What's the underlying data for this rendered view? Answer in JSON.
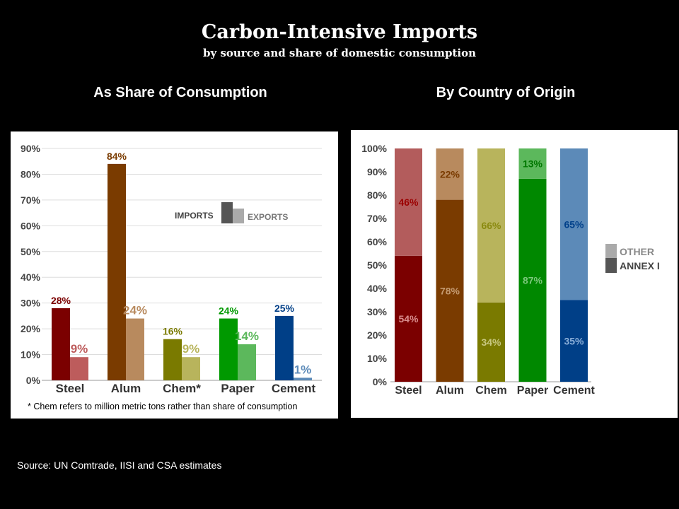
{
  "title": "Carbon-Intensive Imports",
  "subtitle": "by source and share of domestic consumption",
  "source": "Source: UN Comtrade, IISI and CSA estimates",
  "chart_data": [
    {
      "type": "bar",
      "title": "As Share of Consumption",
      "categories": [
        "Steel",
        "Alum",
        "Chem*",
        "Paper",
        "Cement"
      ],
      "series": [
        {
          "name": "IMPORTS",
          "values": [
            28,
            84,
            16,
            24,
            25
          ],
          "labels": [
            "28%",
            "84%",
            "16%",
            "24%",
            "25%"
          ]
        },
        {
          "name": "EXPORTS",
          "values": [
            9,
            24,
            9,
            14,
            1
          ],
          "labels": [
            "9%",
            "24%",
            "9%",
            "14%",
            "1%"
          ]
        }
      ],
      "y_ticks": [
        "0%",
        "10%",
        "20%",
        "30%",
        "40%",
        "50%",
        "60%",
        "70%",
        "80%",
        "90%"
      ],
      "ylim": [
        0,
        90
      ],
      "grid": true,
      "legend": "middle-right",
      "note": "* Chem refers to million metric tons rather than share of consumption",
      "colors": {
        "imports": [
          "#7b0000",
          "#7a3b00",
          "#7a7a00",
          "#009900",
          "#003f87"
        ],
        "exports": [
          "#bd5c5c",
          "#b88a5e",
          "#b8b45c",
          "#5cb85c",
          "#5c8ab8"
        ],
        "legend_imports": "#555555",
        "legend_exports": "#aaaaaa"
      }
    },
    {
      "type": "bar",
      "stacked": true,
      "title": "By Country of Origin",
      "categories": [
        "Steel",
        "Alum",
        "Chem",
        "Paper",
        "Cement"
      ],
      "series": [
        {
          "name": "ANNEX I",
          "values": [
            54,
            78,
            34,
            87,
            35
          ],
          "labels": [
            "54%",
            "78%",
            "34%",
            "87%",
            "35%"
          ]
        },
        {
          "name": "OTHER",
          "values": [
            46,
            22,
            66,
            13,
            65
          ],
          "labels": [
            "46%",
            "22%",
            "66%",
            "13%",
            "65%"
          ]
        }
      ],
      "y_ticks": [
        "0%",
        "10%",
        "20%",
        "30%",
        "40%",
        "50%",
        "60%",
        "70%",
        "80%",
        "90%",
        "100%"
      ],
      "ylim": [
        0,
        100
      ],
      "grid": false,
      "legend": "right",
      "colors": {
        "annex": [
          "#7b0000",
          "#7a3b00",
          "#7a7a00",
          "#008800",
          "#003f87"
        ],
        "other": [
          "#b35c5c",
          "#b88a5e",
          "#b8b45c",
          "#5cb85c",
          "#5c8ab8"
        ],
        "annex_label": [
          "#d98c8c",
          "#c49a70",
          "#c8c880",
          "#7cc87c",
          "#8cb0d9"
        ],
        "other_label": [
          "#9b0000",
          "#7a3b00",
          "#8a8a10",
          "#007700",
          "#00408a"
        ],
        "legend_other": "#aaaaaa",
        "legend_annex": "#555555"
      }
    }
  ]
}
